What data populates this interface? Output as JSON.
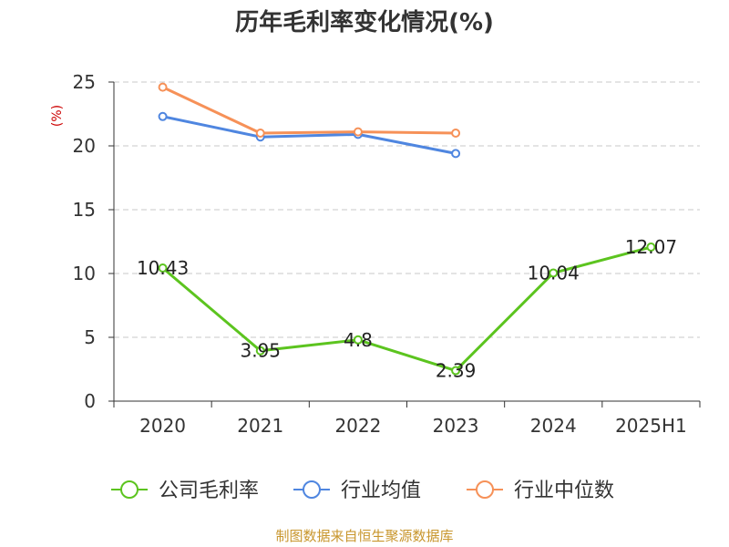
{
  "chart_data": {
    "type": "line",
    "title": "历年毛利率变化情况(%)",
    "ylabel": "(%)",
    "xlabel": "",
    "categories": [
      "2020",
      "2021",
      "2022",
      "2023",
      "2024",
      "2025H1"
    ],
    "yticks": [
      "0",
      "5",
      "10",
      "15",
      "20",
      "25"
    ],
    "ylim": [
      0,
      25
    ],
    "grid": true,
    "legend_position": "bottom",
    "series": [
      {
        "name": "公司毛利率",
        "color": "#5cc41f",
        "values": [
          10.43,
          3.95,
          4.8,
          2.39,
          10.04,
          12.07
        ],
        "labels": [
          "10.43",
          "3.95",
          "4.8",
          "2.39",
          "10.04",
          "12.07"
        ]
      },
      {
        "name": "行业均值",
        "color": "#4f86e0",
        "values": [
          22.3,
          20.7,
          20.9,
          19.4,
          null,
          null
        ]
      },
      {
        "name": "行业中位数",
        "color": "#f69158",
        "values": [
          24.6,
          21.0,
          21.1,
          21.0,
          null,
          null
        ]
      }
    ],
    "ylabel_color": "#cc0000",
    "source": "制图数据来自恒生聚源数据库",
    "source_color": "#c8962d"
  }
}
